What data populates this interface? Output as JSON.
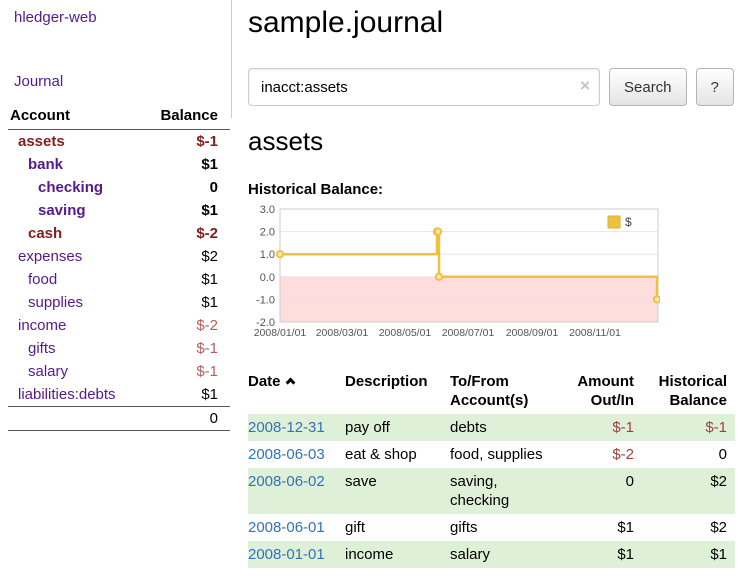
{
  "colors": {
    "link_purple": "#551a8b",
    "link_blue": "#3272b6",
    "negative_dark": "#7f1f1f",
    "negative": "#a23f3f",
    "negative_light": "#b35d5d",
    "row_green": "#dff0d8",
    "chart_line_gold": "#edc240",
    "chart_negative_region": "#ffdddd"
  },
  "sidebar": {
    "brand": "hledger-web",
    "journal_label": "Journal",
    "accounts": {
      "header_account": "Account",
      "header_balance": "Balance",
      "rows": [
        {
          "name": "assets",
          "level": 0,
          "bold": true,
          "name_negative": true,
          "balance": "$-1",
          "balance_negative": true
        },
        {
          "name": "bank",
          "level": 1,
          "bold": true,
          "name_negative": false,
          "balance": "$1",
          "balance_negative": false
        },
        {
          "name": "checking",
          "level": 2,
          "bold": true,
          "name_negative": false,
          "balance": "0",
          "balance_negative": false
        },
        {
          "name": "saving",
          "level": 2,
          "bold": true,
          "name_negative": false,
          "balance": "$1",
          "balance_negative": false
        },
        {
          "name": "cash",
          "level": 1,
          "bold": true,
          "name_negative": true,
          "balance": "$-2",
          "balance_negative": true
        },
        {
          "name": "expenses",
          "level": 0,
          "bold": false,
          "name_negative": false,
          "balance": "$2",
          "balance_negative": false
        },
        {
          "name": "food",
          "level": 1,
          "bold": false,
          "name_negative": false,
          "balance": "$1",
          "balance_negative": false
        },
        {
          "name": "supplies",
          "level": 1,
          "bold": false,
          "name_negative": false,
          "balance": "$1",
          "balance_negative": false
        },
        {
          "name": "income",
          "level": 0,
          "bold": false,
          "name_negative": false,
          "balance": "$-2",
          "balance_negative": true
        },
        {
          "name": "gifts",
          "level": 1,
          "bold": false,
          "name_negative": false,
          "balance": "$-1",
          "balance_negative": true
        },
        {
          "name": "salary",
          "level": 1,
          "bold": false,
          "name_negative": false,
          "balance": "$-1",
          "balance_negative": true
        },
        {
          "name": "liabilities:debts",
          "level": 0,
          "bold": false,
          "name_negative": false,
          "balance": "$1",
          "balance_negative": false
        }
      ],
      "total": "0"
    }
  },
  "main": {
    "title": "sample.journal",
    "search": {
      "value": "inacct:assets",
      "clear_icon": "×",
      "button_label": "Search",
      "help_label": "?"
    },
    "account_heading": "assets",
    "chart_label": "Historical Balance:"
  },
  "chart_data": {
    "type": "line",
    "step": true,
    "title": "Historical Balance",
    "ylim": [
      -2,
      3
    ],
    "yticks": [
      "3.0",
      "2.0",
      "1.0",
      "0.0",
      "-1.0",
      "-2.0"
    ],
    "ytick_values": [
      3,
      2,
      1,
      0,
      -1,
      -2
    ],
    "xlim": [
      "2008-01-01",
      "2009-01-01"
    ],
    "xticks": [
      {
        "label": "2008/01/01",
        "date": "2008-01-01"
      },
      {
        "label": "2008/03/01",
        "date": "2008-03-01"
      },
      {
        "label": "2008/05/01",
        "date": "2008-05-01"
      },
      {
        "label": "2008/07/01",
        "date": "2008-07-01"
      },
      {
        "label": "2008/09/01",
        "date": "2008-09-01"
      },
      {
        "label": "2008/11/01",
        "date": "2008-11-01"
      }
    ],
    "legend": {
      "label": "$",
      "position": "top-right"
    },
    "grid": true,
    "series": [
      {
        "name": "$",
        "color": "#edc240",
        "points": [
          {
            "date": "2008-01-01",
            "value": 1
          },
          {
            "date": "2008-06-01",
            "value": 2
          },
          {
            "date": "2008-06-02",
            "value": 2
          },
          {
            "date": "2008-06-03",
            "value": 0
          },
          {
            "date": "2008-12-31",
            "value": -1
          }
        ]
      }
    ],
    "negative_region": true
  },
  "register": {
    "headers": [
      {
        "label": "Date",
        "align": "left",
        "sorted": "asc"
      },
      {
        "label": "Description",
        "align": "left"
      },
      {
        "label": "To/From\nAccount(s)",
        "align": "left"
      },
      {
        "label": "Amount\nOut/In",
        "align": "right"
      },
      {
        "label": "Historical\nBalance",
        "align": "right"
      }
    ],
    "rows": [
      {
        "date": "2008-12-31",
        "description": "pay off",
        "accounts": "debts",
        "amount": "$-1",
        "amount_negative": true,
        "balance": "$-1",
        "balance_negative": true
      },
      {
        "date": "2008-06-03",
        "description": "eat & shop",
        "accounts": "food, supplies",
        "amount": "$-2",
        "amount_negative": true,
        "balance": "0",
        "balance_negative": false
      },
      {
        "date": "2008-06-02",
        "description": "save",
        "accounts": "saving, checking",
        "amount": "0",
        "amount_negative": false,
        "balance": "$2",
        "balance_negative": false
      },
      {
        "date": "2008-06-01",
        "description": "gift",
        "accounts": "gifts",
        "amount": "$1",
        "amount_negative": false,
        "balance": "$2",
        "balance_negative": false
      },
      {
        "date": "2008-01-01",
        "description": "income",
        "accounts": "salary",
        "amount": "$1",
        "amount_negative": false,
        "balance": "$1",
        "balance_negative": false
      }
    ]
  }
}
